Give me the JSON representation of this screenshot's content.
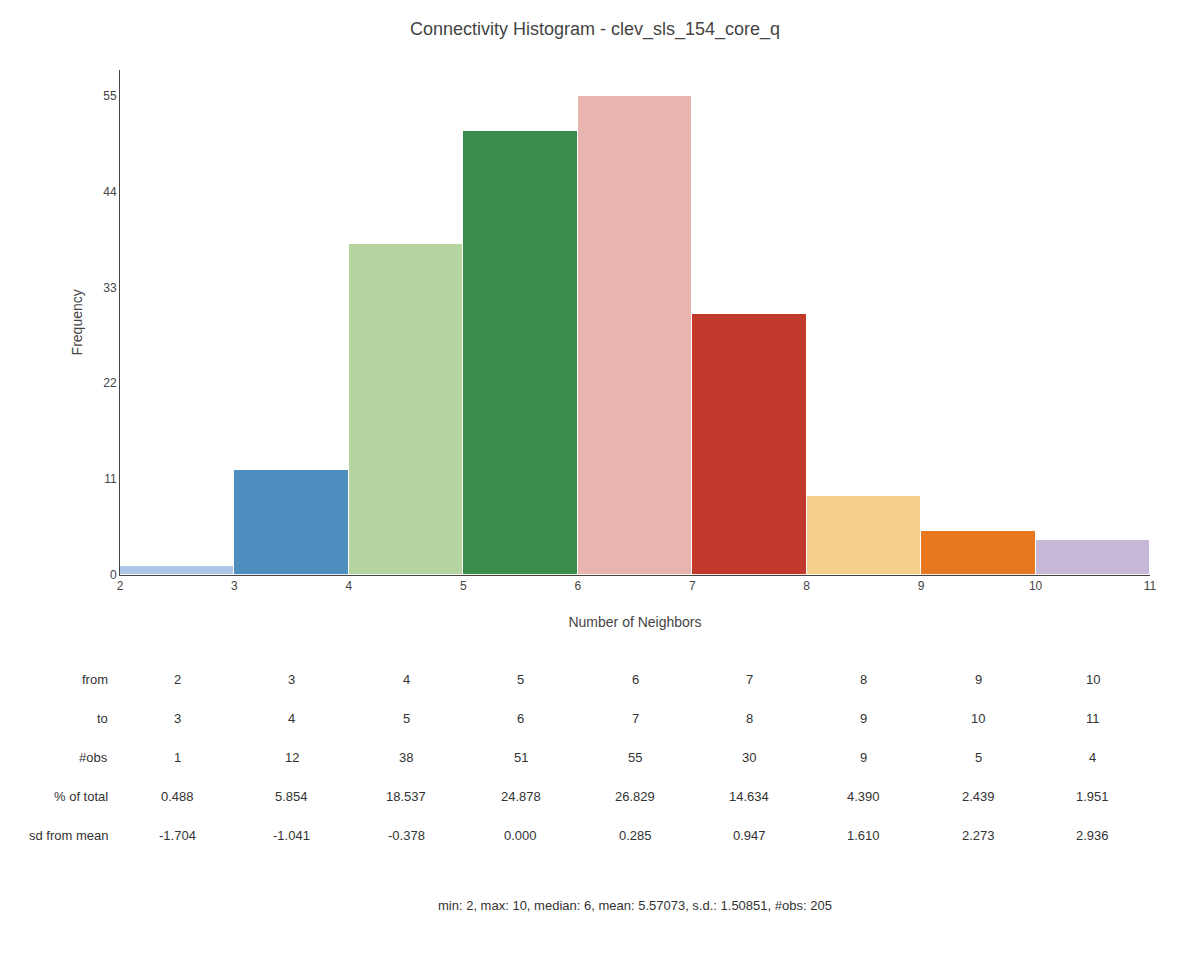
{
  "chart_data": {
    "type": "histogram",
    "title": "Connectivity Histogram - clev_sls_154_core_q",
    "xlabel": "Number of Neighbors",
    "ylabel": "Frequency",
    "bins": [
      2,
      3,
      4,
      5,
      6,
      7,
      8,
      9,
      10,
      11
    ],
    "values": [
      1,
      12,
      38,
      51,
      55,
      30,
      9,
      5,
      4
    ],
    "colors": [
      "#aec6e8",
      "#4e8fc0",
      "#b5d4a0",
      "#3a8c4a",
      "#e8b4b0",
      "#c0392b",
      "#f5d08a",
      "#e87820",
      "#c8b8d8"
    ],
    "xlim": [
      2,
      11
    ],
    "ylim": [
      0,
      58
    ],
    "xticks": [
      2,
      3,
      4,
      5,
      6,
      7,
      8,
      9,
      10,
      11
    ],
    "yticks": [
      0,
      11,
      22,
      33,
      44,
      55
    ],
    "grid": false,
    "table": [
      {
        "label": "from",
        "values": [
          2,
          3,
          4,
          5,
          6,
          7,
          8,
          9,
          10
        ]
      },
      {
        "label": "to",
        "values": [
          3,
          4,
          5,
          6,
          7,
          8,
          9,
          10,
          11
        ]
      },
      {
        "label": "#obs",
        "values": [
          1,
          12,
          38,
          51,
          55,
          30,
          9,
          5,
          4
        ]
      },
      {
        "label": "% of total",
        "values": [
          0.488,
          5.854,
          18.537,
          24.878,
          26.829,
          14.634,
          4.39,
          2.439,
          1.951
        ],
        "value_labels": [
          "0.488",
          "5.854",
          "18.537",
          "24.878",
          "26.829",
          "14.634",
          "4.390",
          "2.439",
          "1.951"
        ]
      },
      {
        "label": "sd from mean",
        "values": [
          -1.704,
          -1.041,
          -0.378,
          0.0,
          0.285,
          0.947,
          1.61,
          2.273,
          2.936
        ],
        "value_labels": [
          "-1.704",
          "-1.041",
          "-0.378",
          "0.000",
          "0.285",
          "0.947",
          "1.610",
          "2.273",
          "2.936"
        ]
      }
    ],
    "annotations": [
      "min: 2, max: 10, median: 6, mean: 5.57073, s.d.: 1.50851, #obs: 205"
    ]
  }
}
